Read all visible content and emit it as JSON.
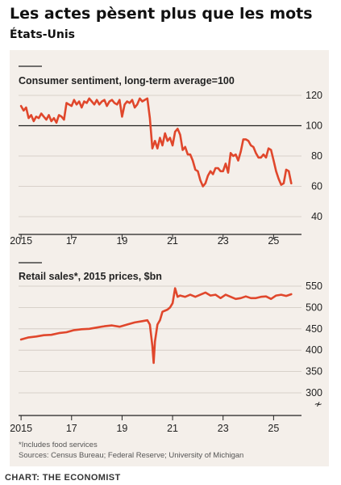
{
  "page": {
    "title": "Les actes pèsent plus que les mots",
    "subtitle": "États-Unis",
    "credit": "CHART: THE ECONOMIST"
  },
  "footnotes": {
    "note": "*Includes food services",
    "sources": "Sources: Census Bureau; Federal Reserve; University of Michigan"
  },
  "colors": {
    "line": "#e0472c",
    "background": "#f4efea",
    "grid": "#cfc7bf",
    "axis": "#222222"
  },
  "chart_data": [
    {
      "type": "line",
      "title": "Consumer sentiment, long-term average=100",
      "ylim": [
        40,
        120
      ],
      "yticks": [
        40,
        60,
        80,
        100,
        120
      ],
      "xlim": [
        2014.9,
        2025.85
      ],
      "xticks": [
        2015,
        2017,
        2019,
        2021,
        2023,
        2025
      ],
      "xtick_labels": [
        "2015",
        "17",
        "19",
        "21",
        "23",
        "25"
      ],
      "reference_line": 100,
      "grid": true,
      "series": [
        {
          "x": [
            2015.0,
            2015.1,
            2015.2,
            2015.3,
            2015.4,
            2015.5,
            2015.6,
            2015.7,
            2015.8,
            2015.9,
            2016.0,
            2016.1,
            2016.2,
            2016.3,
            2016.4,
            2016.5,
            2016.6,
            2016.7,
            2016.8,
            2016.9,
            2017.0,
            2017.1,
            2017.2,
            2017.3,
            2017.4,
            2017.5,
            2017.6,
            2017.7,
            2017.8,
            2017.9,
            2018.0,
            2018.1,
            2018.2,
            2018.3,
            2018.4,
            2018.5,
            2018.6,
            2018.7,
            2018.8,
            2018.9,
            2019.0,
            2019.1,
            2019.2,
            2019.3,
            2019.4,
            2019.5,
            2019.6,
            2019.7,
            2019.8,
            2019.9,
            2020.0,
            2020.1,
            2020.2,
            2020.3,
            2020.4,
            2020.5,
            2020.6,
            2020.7,
            2020.8,
            2020.9,
            2021.0,
            2021.1,
            2021.2,
            2021.3,
            2021.4,
            2021.5,
            2021.6,
            2021.7,
            2021.8,
            2021.9,
            2022.0,
            2022.1,
            2022.2,
            2022.3,
            2022.4,
            2022.5,
            2022.6,
            2022.7,
            2022.8,
            2022.9,
            2023.0,
            2023.1,
            2023.2,
            2023.3,
            2023.4,
            2023.5,
            2023.6,
            2023.7,
            2023.8,
            2023.9,
            2024.0,
            2024.1,
            2024.2,
            2024.3,
            2024.4,
            2024.5,
            2024.6,
            2024.7,
            2024.8,
            2024.9,
            2025.0,
            2025.1,
            2025.2,
            2025.3,
            2025.4,
            2025.5,
            2025.6,
            2025.7
          ],
          "y": [
            113,
            110,
            112,
            105,
            107,
            103,
            106,
            105,
            108,
            106,
            104,
            107,
            103,
            105,
            102,
            107,
            106,
            104,
            115,
            114,
            113,
            117,
            114,
            116,
            112,
            116,
            115,
            118,
            116,
            114,
            117,
            114,
            116,
            117,
            113,
            116,
            117,
            115,
            114,
            117,
            106,
            114,
            116,
            115,
            117,
            112,
            114,
            118,
            116,
            117,
            118,
            105,
            85,
            90,
            85,
            92,
            87,
            95,
            90,
            92,
            87,
            96,
            98,
            94,
            84,
            86,
            81,
            81,
            77,
            71,
            70,
            64,
            60,
            62,
            67,
            70,
            68,
            72,
            72,
            70,
            70,
            75,
            69,
            82,
            80,
            81,
            77,
            83,
            91,
            91,
            90,
            87,
            86,
            82,
            79,
            79,
            81,
            79,
            85,
            84,
            77,
            70,
            65,
            61,
            62,
            71,
            70,
            62
          ]
        }
      ]
    },
    {
      "type": "line",
      "title": "Retail sales*, 2015 prices, $bn",
      "ylim": [
        300,
        550
      ],
      "yticks": [
        300,
        350,
        400,
        450,
        500,
        550
      ],
      "xlim": [
        2014.9,
        2025.85
      ],
      "xticks": [
        2015,
        2017,
        2019,
        2021,
        2023,
        2025
      ],
      "xtick_labels": [
        "2015",
        "17",
        "19",
        "21",
        "23",
        "25"
      ],
      "axis_break": true,
      "grid": true,
      "series": [
        {
          "x": [
            2015.0,
            2015.3,
            2015.6,
            2015.9,
            2016.2,
            2016.5,
            2016.8,
            2017.1,
            2017.4,
            2017.7,
            2018.0,
            2018.3,
            2018.6,
            2018.9,
            2019.2,
            2019.5,
            2019.8,
            2020.0,
            2020.1,
            2020.2,
            2020.25,
            2020.3,
            2020.4,
            2020.5,
            2020.6,
            2020.8,
            2020.9,
            2021.0,
            2021.1,
            2021.2,
            2021.3,
            2021.5,
            2021.7,
            2021.9,
            2022.1,
            2022.3,
            2022.5,
            2022.7,
            2022.9,
            2023.1,
            2023.3,
            2023.5,
            2023.7,
            2023.9,
            2024.1,
            2024.3,
            2024.5,
            2024.7,
            2024.9,
            2025.1,
            2025.3,
            2025.5,
            2025.7
          ],
          "y": [
            425,
            430,
            432,
            435,
            436,
            440,
            442,
            447,
            449,
            450,
            453,
            456,
            458,
            455,
            460,
            465,
            468,
            470,
            460,
            410,
            370,
            420,
            460,
            470,
            490,
            495,
            500,
            510,
            545,
            525,
            528,
            525,
            530,
            525,
            530,
            535,
            528,
            530,
            522,
            530,
            525,
            520,
            522,
            526,
            522,
            522,
            525,
            526,
            520,
            528,
            530,
            527,
            531
          ]
        }
      ]
    }
  ]
}
